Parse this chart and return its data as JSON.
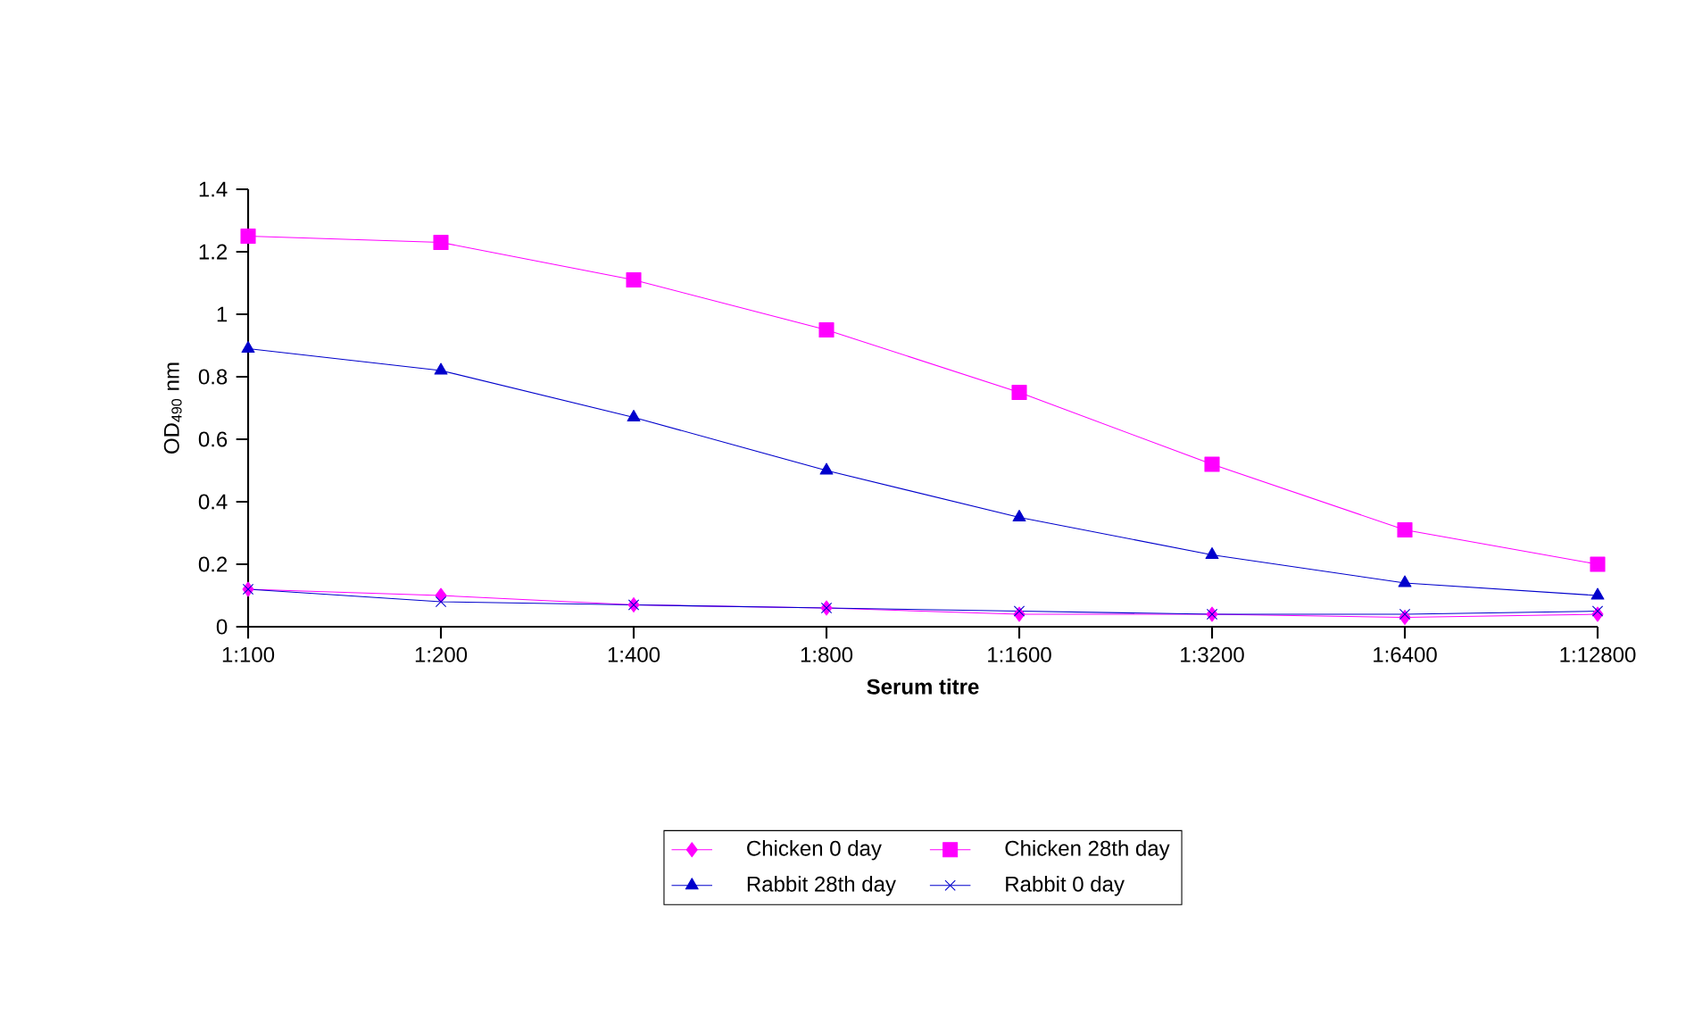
{
  "chart_data": {
    "type": "line",
    "xlabel": "Serum titre",
    "ylabel": "OD$_{490}$ nm",
    "categories": [
      "1:100",
      "1:200",
      "1:400",
      "1:800",
      "1:1600",
      "1:3200",
      "1:6400",
      "1:12800"
    ],
    "series": [
      {
        "name": "Chicken 0 day",
        "color": "#ff00ff",
        "marker": "diamond",
        "values": [
          0.12,
          0.1,
          0.07,
          0.06,
          0.04,
          0.04,
          0.03,
          0.04
        ]
      },
      {
        "name": "Chicken 28th day",
        "color": "#ff00ff",
        "marker": "square",
        "values": [
          1.25,
          1.23,
          1.11,
          0.95,
          0.75,
          0.52,
          0.31,
          0.2
        ]
      },
      {
        "name": "Rabbit 28th day",
        "color": "#0000cc",
        "marker": "triangle",
        "values": [
          0.89,
          0.82,
          0.67,
          0.5,
          0.35,
          0.23,
          0.14,
          0.1
        ]
      },
      {
        "name": "Rabbit 0 day",
        "color": "#0000cc",
        "marker": "cross",
        "values": [
          0.12,
          0.08,
          0.07,
          0.06,
          0.05,
          0.04,
          0.04,
          0.05
        ]
      }
    ],
    "ylim": [
      0,
      1.4
    ],
    "yticks": [
      0,
      0.2,
      0.4,
      0.6,
      0.8,
      1,
      1.2,
      1.4
    ],
    "grid": false,
    "legend": "bottom",
    "line_style": "solid"
  }
}
